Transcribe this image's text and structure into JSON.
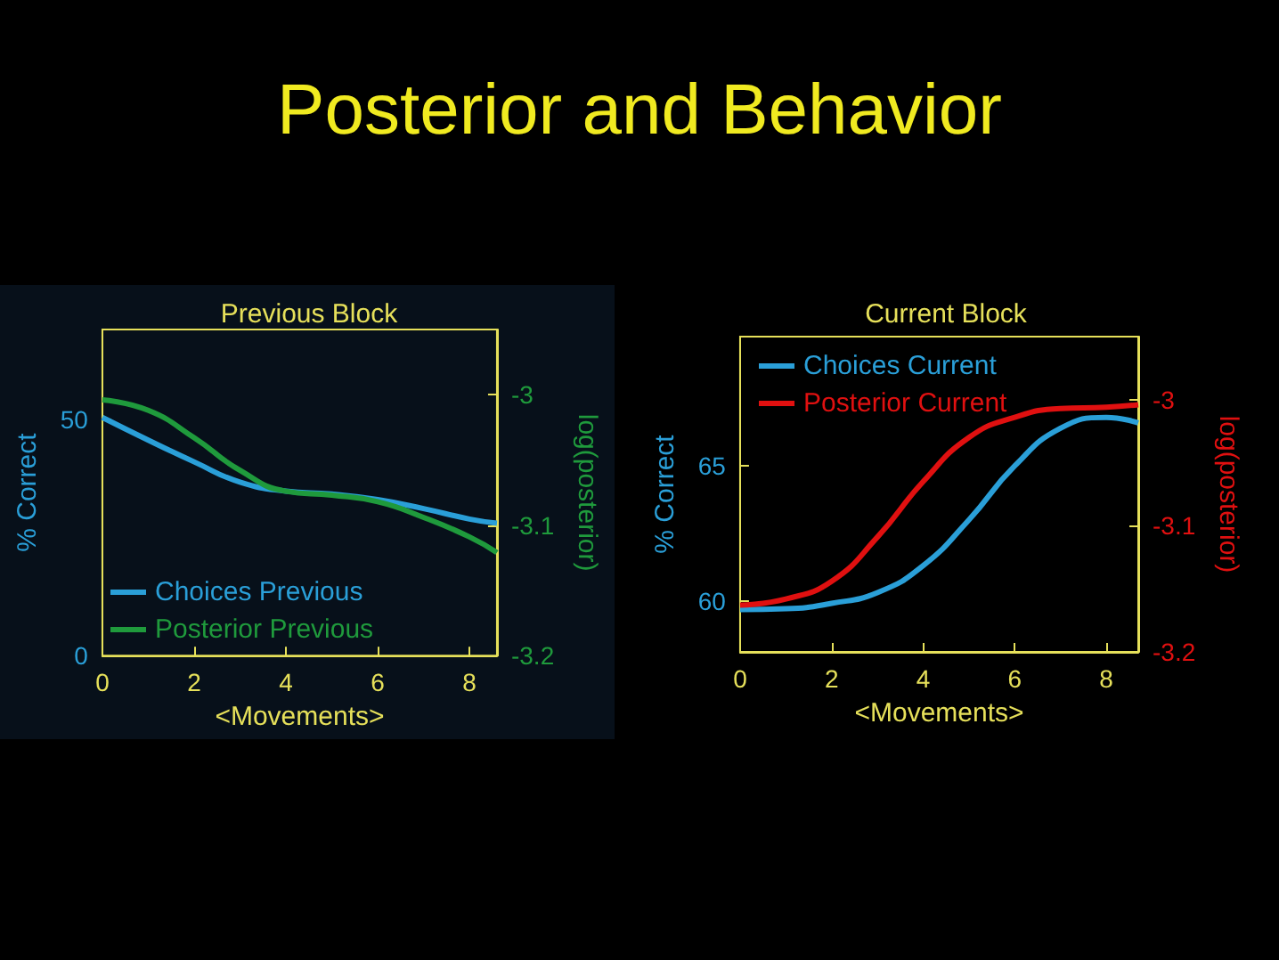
{
  "chart_data": [
    {
      "type": "line",
      "title": "Previous Block",
      "annotations": [
        "Posterior and Behavior"
      ],
      "xlabel": "<Movements>",
      "ylabel": "% Correct",
      "y2label": "log(posterior)",
      "xlim": [
        0,
        8.6
      ],
      "xticks": [
        0,
        2,
        4,
        6,
        8
      ],
      "ylim": [
        0,
        69
      ],
      "yticks": [
        0,
        50
      ],
      "y2lim": [
        -3.2,
        -2.95
      ],
      "y2ticks": [
        -3,
        -3.1,
        -3.2
      ],
      "x": [
        0,
        1,
        2,
        3,
        4,
        5,
        6,
        7,
        8,
        8.6
      ],
      "grid": false,
      "legend": "bottom left",
      "marker": "none",
      "line_style": "solid",
      "series": [
        {
          "name": "Choices Previous",
          "color": "#2a9fd8",
          "values": [
            50.4,
            45.6,
            41,
            36.7,
            34.8,
            34.2,
            33,
            31.1,
            28.9,
            28
          ]
        },
        {
          "name": "Posterior Previous",
          "color": "#1f9a3c",
          "axis": "y2",
          "values": [
            -3.004,
            -3.012,
            -3.033,
            -3.058,
            -3.074,
            -3.077,
            -3.082,
            -3.094,
            -3.109,
            -3.121
          ]
        }
      ]
    },
    {
      "type": "line",
      "title": "Current Block",
      "xlabel": "<Movements>",
      "ylabel": "% Correct",
      "y2label": "log(posterior)",
      "xlim": [
        0,
        8.7
      ],
      "xticks": [
        0,
        2,
        4,
        6,
        8
      ],
      "ylim": [
        58.1,
        69.8
      ],
      "yticks": [
        60,
        65
      ],
      "y2lim": [
        -3.2,
        -2.95
      ],
      "y2ticks": [
        -3,
        -3.1,
        -3.2
      ],
      "x": [
        0,
        1,
        2,
        3,
        4,
        5,
        6,
        7,
        8,
        8.7
      ],
      "grid": false,
      "legend": "top left",
      "marker": "none",
      "line_style": "solid",
      "series": [
        {
          "name": "Choices Current",
          "color": "#2a9fd8",
          "values": [
            59.67,
            59.7,
            59.9,
            60.3,
            61.3,
            63,
            65,
            66.4,
            66.8,
            66.6
          ]
        },
        {
          "name": "Posterior Current",
          "color": "#e01010",
          "axis": "y2",
          "values": [
            -3.163,
            -3.158,
            -3.144,
            -3.109,
            -3.065,
            -3.03,
            -3.014,
            -3.007,
            -3.006,
            -3.004
          ]
        }
      ]
    }
  ]
}
